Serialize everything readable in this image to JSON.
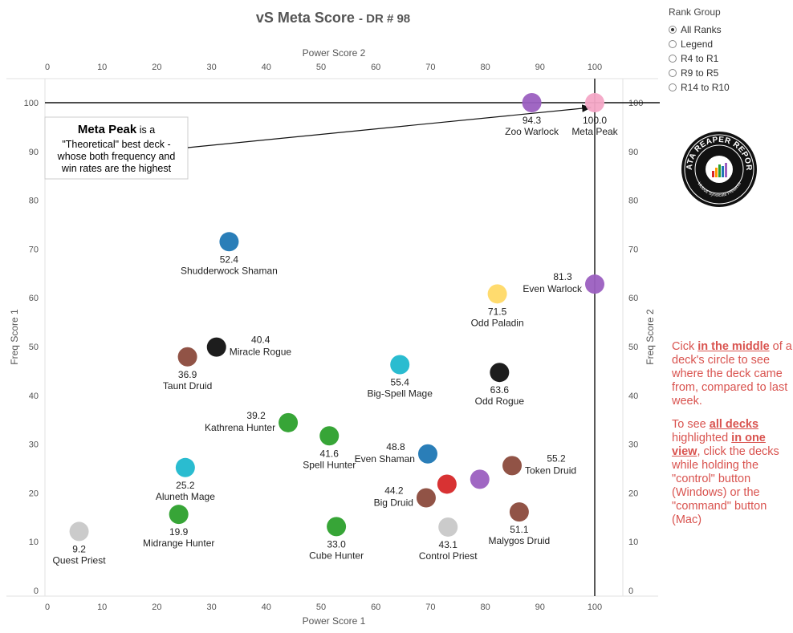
{
  "title": {
    "main": "vS Meta Score",
    "sub": "DR # 98"
  },
  "legend": {
    "title": "Rank Group",
    "options": [
      {
        "label": "All Ranks",
        "selected": true
      },
      {
        "label": "Legend",
        "selected": false
      },
      {
        "label": "R4 to R1",
        "selected": false
      },
      {
        "label": "R9 to R5",
        "selected": false
      },
      {
        "label": "R14 to R10",
        "selected": false
      }
    ]
  },
  "annotation": {
    "bold": "Meta Peak",
    "rest_line1": " is a",
    "line2": "\"Theoretical\" best deck -",
    "line3": "whose both frequency and",
    "line4": "win rates are the highest"
  },
  "instructions": {
    "p1_a": "Cick ",
    "p1_b": "in the middle",
    "p1_c": " of a deck's circle to see where the deck came from, compared to last week.",
    "p2_a": "To see ",
    "p2_b": "all decks",
    "p2_c": " highlighted ",
    "p2_d": "in one view",
    "p2_e": ", click the decks while holding the \"control\" button (Windows) or the \"command\" button (Mac)"
  },
  "logo": {
    "text": "DATA REAPER REPORT",
    "subtext": "Vicious Syndicate Presents"
  },
  "chart_data": {
    "type": "scatter",
    "xlabel": "Power Score 1",
    "x2label": "Power Score 2",
    "ylabel": "Freq Score 1",
    "y2label": "Freq Score 2",
    "xlim": [
      0,
      105
    ],
    "ylim": [
      0,
      105
    ],
    "xticks": [
      0,
      10,
      20,
      30,
      40,
      50,
      60,
      70,
      80,
      90,
      100
    ],
    "yticks": [
      0,
      10,
      20,
      30,
      40,
      50,
      60,
      70,
      80,
      90,
      100
    ],
    "reference_lines": {
      "x": 100,
      "y": 100
    },
    "points": [
      {
        "name": "Meta Peak",
        "value": "100.0",
        "x": 100,
        "y": 100,
        "color": "#f4a6c6",
        "label_pos": "below"
      },
      {
        "name": "Zoo Warlock",
        "value": "94.3",
        "x": 88.5,
        "y": 100,
        "color": "#9b5fc0",
        "label_pos": "below"
      },
      {
        "name": "Shudderwock Shaman",
        "value": "52.4",
        "x": 33.2,
        "y": 71.5,
        "color": "#1f77b4",
        "label_pos": "below"
      },
      {
        "name": "Even Warlock",
        "value": "81.3",
        "x": 100,
        "y": 62.8,
        "color": "#9b5fc0",
        "label_pos": "left"
      },
      {
        "name": "Odd Paladin",
        "value": "71.5",
        "x": 82.2,
        "y": 60.8,
        "color": "#ffd966",
        "label_pos": "below"
      },
      {
        "name": "Miracle Rogue",
        "value": "40.4",
        "x": 30.9,
        "y": 49.9,
        "color": "#111111",
        "label_pos": "right"
      },
      {
        "name": "Taunt Druid",
        "value": "36.9",
        "x": 25.6,
        "y": 47.9,
        "color": "#8b4a3c",
        "label_pos": "below"
      },
      {
        "name": "Big-Spell Mage",
        "value": "55.4",
        "x": 64.4,
        "y": 46.3,
        "color": "#1fb8cd",
        "label_pos": "below"
      },
      {
        "name": "Odd Rogue",
        "value": "63.6",
        "x": 82.6,
        "y": 44.7,
        "color": "#111111",
        "label_pos": "below"
      },
      {
        "name": "Kathrena Hunter",
        "value": "39.2",
        "x": 44.0,
        "y": 34.4,
        "color": "#2ca02c",
        "label_pos": "left"
      },
      {
        "name": "Spell Hunter",
        "value": "41.6",
        "x": 51.5,
        "y": 31.7,
        "color": "#2ca02c",
        "label_pos": "below"
      },
      {
        "name": "Even Shaman",
        "value": "48.8",
        "x": 69.5,
        "y": 28.0,
        "color": "#1f77b4",
        "label_pos": "left"
      },
      {
        "name": "Aluneth Mage",
        "value": "25.2",
        "x": 25.2,
        "y": 25.2,
        "color": "#1fb8cd",
        "label_pos": "below"
      },
      {
        "name": "Token Druid",
        "value": "55.2",
        "x": 84.9,
        "y": 25.6,
        "color": "#8b4a3c",
        "label_pos": "right"
      },
      {
        "name": "",
        "value": "",
        "x": 79.0,
        "y": 22.8,
        "color": "#9b5fc0",
        "label_pos": "none"
      },
      {
        "name": "",
        "value": "",
        "x": 73.0,
        "y": 21.8,
        "color": "#d62728",
        "label_pos": "none"
      },
      {
        "name": "Big Druid",
        "value": "44.2",
        "x": 69.2,
        "y": 19.0,
        "color": "#8b4a3c",
        "label_pos": "left"
      },
      {
        "name": "Midrange Hunter",
        "value": "19.9",
        "x": 24.0,
        "y": 15.6,
        "color": "#2ca02c",
        "label_pos": "below"
      },
      {
        "name": "Malygos Druid",
        "value": "51.1",
        "x": 86.2,
        "y": 16.1,
        "color": "#8b4a3c",
        "label_pos": "below"
      },
      {
        "name": "Cube Hunter",
        "value": "33.0",
        "x": 52.8,
        "y": 13.1,
        "color": "#2ca02c",
        "label_pos": "below"
      },
      {
        "name": "Control Priest",
        "value": "43.1",
        "x": 73.2,
        "y": 13.0,
        "color": "#c8c8c8",
        "label_pos": "below"
      },
      {
        "name": "Quest Priest",
        "value": "9.2",
        "x": 5.8,
        "y": 12.1,
        "color": "#c8c8c8",
        "label_pos": "below"
      }
    ]
  }
}
